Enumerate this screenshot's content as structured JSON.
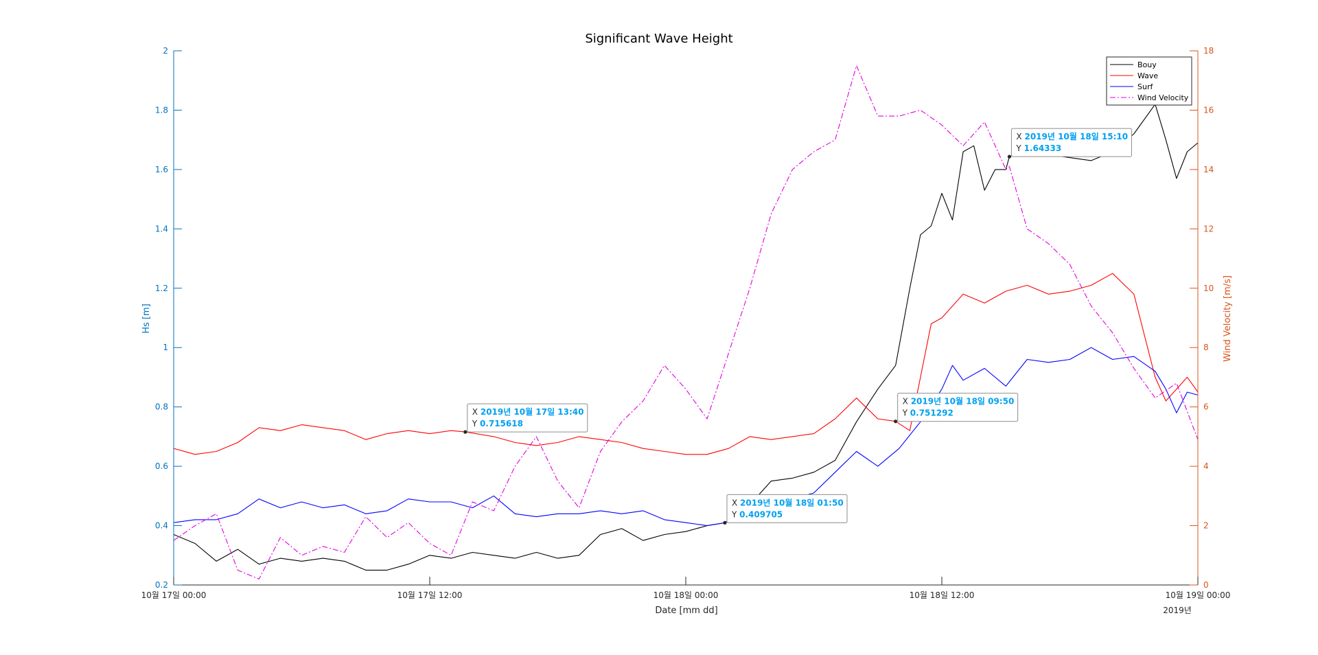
{
  "chart_data": {
    "type": "line",
    "title": "Significant Wave Height",
    "xlabel": "Date [mm dd]",
    "ylabel_left": "Hs [m]",
    "ylabel_right": "Wind Velocity [m/s]",
    "x_range": [
      "2019-10-17 00:00",
      "2019-10-19 00:00"
    ],
    "x_ticks": [
      {
        "time": "2019-10-17 00:00",
        "label": "10월 17일 00:00"
      },
      {
        "time": "2019-10-17 12:00",
        "label": "10월 17일 12:00"
      },
      {
        "time": "2019-10-18 00:00",
        "label": "10월 18일 00:00"
      },
      {
        "time": "2019-10-18 12:00",
        "label": "10월 18일 12:00"
      },
      {
        "time": "2019-10-19 00:00",
        "label": "10월 19일 00:00"
      }
    ],
    "x_secondary_label": "2019년",
    "ylim_left": [
      0.2,
      2.0
    ],
    "yticks_left": [
      "0.2",
      "0.4",
      "0.6",
      "0.8",
      "1",
      "1.2",
      "1.4",
      "1.6",
      "1.8",
      "2"
    ],
    "ylim_right": [
      0,
      18
    ],
    "yticks_right": [
      "0",
      "2",
      "4",
      "6",
      "8",
      "10",
      "12",
      "14",
      "16",
      "18"
    ],
    "grid": false,
    "legend": {
      "location": "top-right",
      "entries": [
        "Bouy",
        "Wave",
        "Surf",
        "Wind Velocity"
      ]
    },
    "series": [
      {
        "name": "Bouy",
        "axis": "left",
        "color": "#000000",
        "style": "solid",
        "points": [
          [
            "2019-10-17 00:00",
            0.37
          ],
          [
            "2019-10-17 01:00",
            0.34
          ],
          [
            "2019-10-17 02:00",
            0.28
          ],
          [
            "2019-10-17 03:00",
            0.32
          ],
          [
            "2019-10-17 04:00",
            0.27
          ],
          [
            "2019-10-17 05:00",
            0.29
          ],
          [
            "2019-10-17 06:00",
            0.28
          ],
          [
            "2019-10-17 07:00",
            0.29
          ],
          [
            "2019-10-17 08:00",
            0.28
          ],
          [
            "2019-10-17 09:00",
            0.25
          ],
          [
            "2019-10-17 10:00",
            0.25
          ],
          [
            "2019-10-17 11:00",
            0.27
          ],
          [
            "2019-10-17 12:00",
            0.3
          ],
          [
            "2019-10-17 13:00",
            0.29
          ],
          [
            "2019-10-17 14:00",
            0.31
          ],
          [
            "2019-10-17 15:00",
            0.3
          ],
          [
            "2019-10-17 16:00",
            0.29
          ],
          [
            "2019-10-17 17:00",
            0.31
          ],
          [
            "2019-10-17 18:00",
            0.29
          ],
          [
            "2019-10-17 19:00",
            0.3
          ],
          [
            "2019-10-17 20:00",
            0.37
          ],
          [
            "2019-10-17 21:00",
            0.39
          ],
          [
            "2019-10-17 22:00",
            0.35
          ],
          [
            "2019-10-17 23:00",
            0.37
          ],
          [
            "2019-10-18 00:00",
            0.38
          ],
          [
            "2019-10-18 01:00",
            0.4
          ],
          [
            "2019-10-18 01:50",
            0.409705
          ],
          [
            "2019-10-18 03:00",
            0.47
          ],
          [
            "2019-10-18 04:00",
            0.55
          ],
          [
            "2019-10-18 05:00",
            0.56
          ],
          [
            "2019-10-18 06:00",
            0.58
          ],
          [
            "2019-10-18 07:00",
            0.62
          ],
          [
            "2019-10-18 08:00",
            0.75
          ],
          [
            "2019-10-18 09:00",
            0.86
          ],
          [
            "2019-10-18 09:50",
            0.94
          ],
          [
            "2019-10-18 10:30",
            1.2
          ],
          [
            "2019-10-18 11:00",
            1.38
          ],
          [
            "2019-10-18 11:30",
            1.41
          ],
          [
            "2019-10-18 12:00",
            1.52
          ],
          [
            "2019-10-18 12:30",
            1.43
          ],
          [
            "2019-10-18 13:00",
            1.66
          ],
          [
            "2019-10-18 13:30",
            1.68
          ],
          [
            "2019-10-18 14:00",
            1.53
          ],
          [
            "2019-10-18 14:30",
            1.6
          ],
          [
            "2019-10-18 15:00",
            1.6
          ],
          [
            "2019-10-18 15:10",
            1.64333
          ],
          [
            "2019-10-18 16:00",
            1.67
          ],
          [
            "2019-10-18 17:00",
            1.65
          ],
          [
            "2019-10-18 18:00",
            1.64
          ],
          [
            "2019-10-18 19:00",
            1.63
          ],
          [
            "2019-10-18 20:00",
            1.66
          ],
          [
            "2019-10-18 21:00",
            1.72
          ],
          [
            "2019-10-18 22:00",
            1.82
          ],
          [
            "2019-10-18 22:30",
            1.7
          ],
          [
            "2019-10-18 23:00",
            1.57
          ],
          [
            "2019-10-18 23:30",
            1.66
          ],
          [
            "2019-10-19 00:00",
            1.69
          ]
        ]
      },
      {
        "name": "Wave",
        "axis": "left",
        "color": "#ff0000",
        "style": "solid",
        "points": [
          [
            "2019-10-17 00:00",
            0.66
          ],
          [
            "2019-10-17 01:00",
            0.64
          ],
          [
            "2019-10-17 02:00",
            0.65
          ],
          [
            "2019-10-17 03:00",
            0.68
          ],
          [
            "2019-10-17 04:00",
            0.73
          ],
          [
            "2019-10-17 05:00",
            0.72
          ],
          [
            "2019-10-17 06:00",
            0.74
          ],
          [
            "2019-10-17 07:00",
            0.73
          ],
          [
            "2019-10-17 08:00",
            0.72
          ],
          [
            "2019-10-17 09:00",
            0.69
          ],
          [
            "2019-10-17 10:00",
            0.71
          ],
          [
            "2019-10-17 11:00",
            0.72
          ],
          [
            "2019-10-17 12:00",
            0.71
          ],
          [
            "2019-10-17 13:00",
            0.72
          ],
          [
            "2019-10-17 13:40",
            0.715618
          ],
          [
            "2019-10-17 15:00",
            0.7
          ],
          [
            "2019-10-17 16:00",
            0.68
          ],
          [
            "2019-10-17 17:00",
            0.67
          ],
          [
            "2019-10-17 18:00",
            0.68
          ],
          [
            "2019-10-17 19:00",
            0.7
          ],
          [
            "2019-10-17 20:00",
            0.69
          ],
          [
            "2019-10-17 21:00",
            0.68
          ],
          [
            "2019-10-17 22:00",
            0.66
          ],
          [
            "2019-10-17 23:00",
            0.65
          ],
          [
            "2019-10-18 00:00",
            0.64
          ],
          [
            "2019-10-18 01:00",
            0.64
          ],
          [
            "2019-10-18 02:00",
            0.66
          ],
          [
            "2019-10-18 03:00",
            0.7
          ],
          [
            "2019-10-18 04:00",
            0.69
          ],
          [
            "2019-10-18 05:00",
            0.7
          ],
          [
            "2019-10-18 06:00",
            0.71
          ],
          [
            "2019-10-18 07:00",
            0.76
          ],
          [
            "2019-10-18 08:00",
            0.83
          ],
          [
            "2019-10-18 09:00",
            0.76
          ],
          [
            "2019-10-18 09:50",
            0.751292
          ],
          [
            "2019-10-18 10:30",
            0.72
          ],
          [
            "2019-10-18 11:00",
            0.9
          ],
          [
            "2019-10-18 11:30",
            1.08
          ],
          [
            "2019-10-18 12:00",
            1.1
          ],
          [
            "2019-10-18 13:00",
            1.18
          ],
          [
            "2019-10-18 14:00",
            1.15
          ],
          [
            "2019-10-18 15:00",
            1.19
          ],
          [
            "2019-10-18 16:00",
            1.21
          ],
          [
            "2019-10-18 17:00",
            1.18
          ],
          [
            "2019-10-18 18:00",
            1.19
          ],
          [
            "2019-10-18 19:00",
            1.21
          ],
          [
            "2019-10-18 20:00",
            1.25
          ],
          [
            "2019-10-18 21:00",
            1.18
          ],
          [
            "2019-10-18 22:00",
            0.9
          ],
          [
            "2019-10-18 22:30",
            0.82
          ],
          [
            "2019-10-18 23:00",
            0.86
          ],
          [
            "2019-10-18 23:30",
            0.9
          ],
          [
            "2019-10-19 00:00",
            0.85
          ]
        ]
      },
      {
        "name": "Surf",
        "axis": "left",
        "color": "#0000ff",
        "style": "solid",
        "points": [
          [
            "2019-10-17 00:00",
            0.41
          ],
          [
            "2019-10-17 01:00",
            0.42
          ],
          [
            "2019-10-17 02:00",
            0.42
          ],
          [
            "2019-10-17 03:00",
            0.44
          ],
          [
            "2019-10-17 04:00",
            0.49
          ],
          [
            "2019-10-17 05:00",
            0.46
          ],
          [
            "2019-10-17 06:00",
            0.48
          ],
          [
            "2019-10-17 07:00",
            0.46
          ],
          [
            "2019-10-17 08:00",
            0.47
          ],
          [
            "2019-10-17 09:00",
            0.44
          ],
          [
            "2019-10-17 10:00",
            0.45
          ],
          [
            "2019-10-17 11:00",
            0.49
          ],
          [
            "2019-10-17 12:00",
            0.48
          ],
          [
            "2019-10-17 13:00",
            0.48
          ],
          [
            "2019-10-17 14:00",
            0.46
          ],
          [
            "2019-10-17 15:00",
            0.5
          ],
          [
            "2019-10-17 16:00",
            0.44
          ],
          [
            "2019-10-17 17:00",
            0.43
          ],
          [
            "2019-10-17 18:00",
            0.44
          ],
          [
            "2019-10-17 19:00",
            0.44
          ],
          [
            "2019-10-17 20:00",
            0.45
          ],
          [
            "2019-10-17 21:00",
            0.44
          ],
          [
            "2019-10-17 22:00",
            0.45
          ],
          [
            "2019-10-17 23:00",
            0.42
          ],
          [
            "2019-10-18 00:00",
            0.41
          ],
          [
            "2019-10-18 01:00",
            0.4
          ],
          [
            "2019-10-18 01:50",
            0.409705
          ],
          [
            "2019-10-18 03:00",
            0.46
          ],
          [
            "2019-10-18 04:00",
            0.47
          ],
          [
            "2019-10-18 05:00",
            0.49
          ],
          [
            "2019-10-18 06:00",
            0.51
          ],
          [
            "2019-10-18 07:00",
            0.58
          ],
          [
            "2019-10-18 08:00",
            0.65
          ],
          [
            "2019-10-18 09:00",
            0.6
          ],
          [
            "2019-10-18 10:00",
            0.66
          ],
          [
            "2019-10-18 11:00",
            0.75
          ],
          [
            "2019-10-18 12:00",
            0.86
          ],
          [
            "2019-10-18 12:30",
            0.94
          ],
          [
            "2019-10-18 13:00",
            0.89
          ],
          [
            "2019-10-18 14:00",
            0.93
          ],
          [
            "2019-10-18 15:00",
            0.87
          ],
          [
            "2019-10-18 16:00",
            0.96
          ],
          [
            "2019-10-18 17:00",
            0.95
          ],
          [
            "2019-10-18 18:00",
            0.96
          ],
          [
            "2019-10-18 19:00",
            1.0
          ],
          [
            "2019-10-18 20:00",
            0.96
          ],
          [
            "2019-10-18 21:00",
            0.97
          ],
          [
            "2019-10-18 22:00",
            0.92
          ],
          [
            "2019-10-18 22:30",
            0.86
          ],
          [
            "2019-10-18 23:00",
            0.78
          ],
          [
            "2019-10-18 23:30",
            0.85
          ],
          [
            "2019-10-19 00:00",
            0.84
          ]
        ]
      },
      {
        "name": "Wind Velocity",
        "axis": "right",
        "color": "#e000e0",
        "style": "dashdot",
        "points": [
          [
            "2019-10-17 00:00",
            1.5
          ],
          [
            "2019-10-17 01:00",
            2.0
          ],
          [
            "2019-10-17 02:00",
            2.4
          ],
          [
            "2019-10-17 03:00",
            0.5
          ],
          [
            "2019-10-17 04:00",
            0.2
          ],
          [
            "2019-10-17 05:00",
            1.6
          ],
          [
            "2019-10-17 06:00",
            1.0
          ],
          [
            "2019-10-17 07:00",
            1.3
          ],
          [
            "2019-10-17 08:00",
            1.1
          ],
          [
            "2019-10-17 09:00",
            2.3
          ],
          [
            "2019-10-17 10:00",
            1.6
          ],
          [
            "2019-10-17 11:00",
            2.1
          ],
          [
            "2019-10-17 12:00",
            1.4
          ],
          [
            "2019-10-17 13:00",
            1.0
          ],
          [
            "2019-10-17 14:00",
            2.8
          ],
          [
            "2019-10-17 15:00",
            2.5
          ],
          [
            "2019-10-17 16:00",
            4.0
          ],
          [
            "2019-10-17 17:00",
            5.0
          ],
          [
            "2019-10-17 18:00",
            3.5
          ],
          [
            "2019-10-17 19:00",
            2.6
          ],
          [
            "2019-10-17 20:00",
            4.5
          ],
          [
            "2019-10-17 21:00",
            5.5
          ],
          [
            "2019-10-17 22:00",
            6.2
          ],
          [
            "2019-10-17 23:00",
            7.4
          ],
          [
            "2019-10-18 00:00",
            6.6
          ],
          [
            "2019-10-18 01:00",
            5.6
          ],
          [
            "2019-10-18 02:00",
            7.8
          ],
          [
            "2019-10-18 03:00",
            10.0
          ],
          [
            "2019-10-18 04:00",
            12.5
          ],
          [
            "2019-10-18 05:00",
            14.0
          ],
          [
            "2019-10-18 06:00",
            14.6
          ],
          [
            "2019-10-18 07:00",
            15.0
          ],
          [
            "2019-10-18 08:00",
            17.5
          ],
          [
            "2019-10-18 09:00",
            15.8
          ],
          [
            "2019-10-18 10:00",
            15.8
          ],
          [
            "2019-10-18 11:00",
            16.0
          ],
          [
            "2019-10-18 12:00",
            15.5
          ],
          [
            "2019-10-18 13:00",
            14.8
          ],
          [
            "2019-10-18 14:00",
            15.6
          ],
          [
            "2019-10-18 15:00",
            14.0
          ],
          [
            "2019-10-18 15:10",
            14.1
          ],
          [
            "2019-10-18 16:00",
            12.0
          ],
          [
            "2019-10-18 17:00",
            11.5
          ],
          [
            "2019-10-18 18:00",
            10.8
          ],
          [
            "2019-10-18 19:00",
            9.4
          ],
          [
            "2019-10-18 20:00",
            8.5
          ],
          [
            "2019-10-18 21:00",
            7.3
          ],
          [
            "2019-10-18 22:00",
            6.3
          ],
          [
            "2019-10-18 23:00",
            6.8
          ],
          [
            "2019-10-19 00:00",
            4.9
          ]
        ]
      }
    ],
    "datatips": [
      {
        "x_label": "X",
        "x_value": "2019년 10월 17일 13:40",
        "y_label": "Y",
        "y_value": "0.715618",
        "time": "2019-10-17 13:40",
        "y": 0.715618
      },
      {
        "x_label": "X",
        "x_value": "2019년 10월 18일 01:50",
        "y_label": "Y",
        "y_value": "0.409705",
        "time": "2019-10-18 01:50",
        "y": 0.409705
      },
      {
        "x_label": "X",
        "x_value": "2019년 10월 18일 09:50",
        "y_label": "Y",
        "y_value": "0.751292",
        "time": "2019-10-18 09:50",
        "y": 0.751292
      },
      {
        "x_label": "X",
        "x_value": "2019년 10월 18일 15:10",
        "y_label": "Y",
        "y_value": "1.64333",
        "time": "2019-10-18 15:10",
        "y": 1.64333
      }
    ],
    "colors": {
      "left_axis": "#0072bd",
      "right_axis": "#d95319",
      "datatip_value": "#00a0f0"
    }
  }
}
